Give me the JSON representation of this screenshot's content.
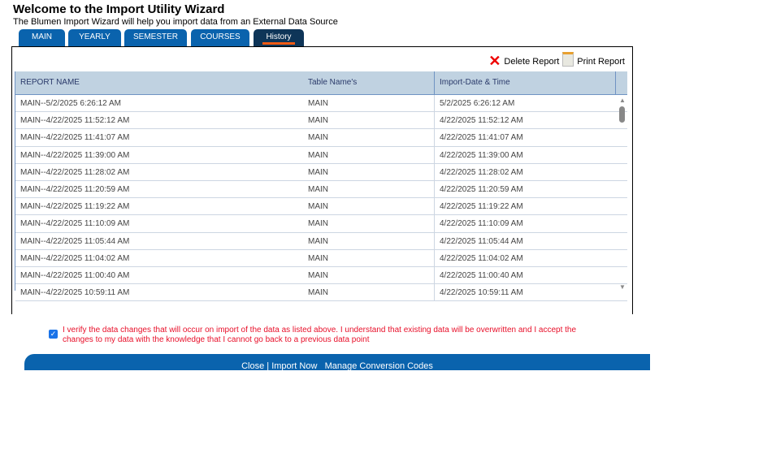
{
  "header": {
    "title": "Welcome to the Import Utility Wizard",
    "subtitle": "The Blumen Import Wizard will help you import data from an External Data Source"
  },
  "tabs": [
    {
      "label": "MAIN"
    },
    {
      "label": "YEARLY"
    },
    {
      "label": "SEMESTER"
    },
    {
      "label": "COURSES"
    },
    {
      "label": "History",
      "active": true
    }
  ],
  "actions": {
    "delete": "Delete Report",
    "print": "Print Report"
  },
  "table": {
    "columns": [
      "REPORT NAME",
      "Table Name's",
      "Import-Date & Time"
    ],
    "rows": [
      [
        "MAIN--5/2/2025 6:26:12 AM",
        "MAIN",
        "5/2/2025 6:26:12 AM"
      ],
      [
        "MAIN--4/22/2025 11:52:12 AM",
        "MAIN",
        "4/22/2025 11:52:12 AM"
      ],
      [
        "MAIN--4/22/2025 11:41:07 AM",
        "MAIN",
        "4/22/2025 11:41:07 AM"
      ],
      [
        "MAIN--4/22/2025 11:39:00 AM",
        "MAIN",
        "4/22/2025 11:39:00 AM"
      ],
      [
        "MAIN--4/22/2025 11:28:02 AM",
        "MAIN",
        "4/22/2025 11:28:02 AM"
      ],
      [
        "MAIN--4/22/2025 11:20:59 AM",
        "MAIN",
        "4/22/2025 11:20:59 AM"
      ],
      [
        "MAIN--4/22/2025 11:19:22 AM",
        "MAIN",
        "4/22/2025 11:19:22 AM"
      ],
      [
        "MAIN--4/22/2025 11:10:09 AM",
        "MAIN",
        "4/22/2025 11:10:09 AM"
      ],
      [
        "MAIN--4/22/2025 11:05:44 AM",
        "MAIN",
        "4/22/2025 11:05:44 AM"
      ],
      [
        "MAIN--4/22/2025 11:04:02 AM",
        "MAIN",
        "4/22/2025 11:04:02 AM"
      ],
      [
        "MAIN--4/22/2025 11:00:40 AM",
        "MAIN",
        "4/22/2025 11:00:40 AM"
      ],
      [
        "MAIN--4/22/2025 10:59:11 AM",
        "MAIN",
        "4/22/2025 10:59:11 AM"
      ]
    ]
  },
  "verify": {
    "checked": true,
    "text": "I verify the data changes that will occur on import of the data as listed above. I understand that existing data will be overwritten and I accept the changes to my data with the knowledge that I cannot go back to a previous data point"
  },
  "footer": {
    "close": "Close",
    "sep": "|",
    "import": "Import Now",
    "manage": "Manage Conversion Codes"
  },
  "colors": {
    "tab": "#0a63ad",
    "active_tab": "#0e3558",
    "header_row": "#c0d2e1",
    "warning": "#e8102a"
  }
}
